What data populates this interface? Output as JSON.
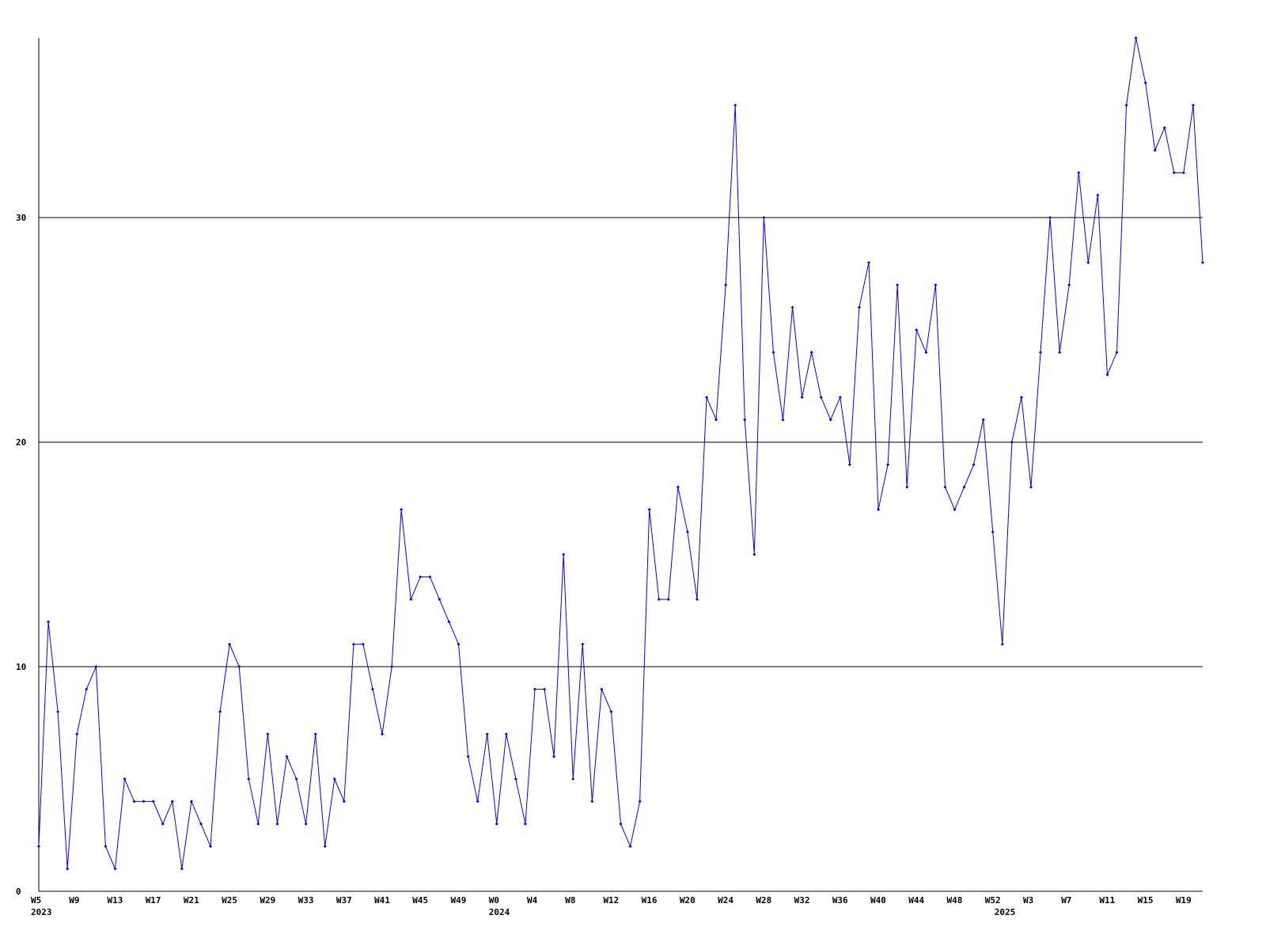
{
  "chart_data": {
    "type": "line",
    "categories": [
      "W5",
      null,
      null,
      null,
      "W9",
      null,
      null,
      null,
      "W13",
      null,
      null,
      null,
      "W17",
      null,
      null,
      null,
      "W21",
      null,
      null,
      null,
      "W25",
      null,
      null,
      null,
      "W29",
      null,
      null,
      null,
      "W33",
      null,
      null,
      null,
      "W37",
      null,
      null,
      null,
      "W41",
      null,
      null,
      null,
      "W45",
      null,
      null,
      null,
      "W49",
      null,
      null,
      null,
      "W0",
      null,
      null,
      null,
      "W4",
      null,
      null,
      null,
      "W8",
      null,
      null,
      null,
      "W12",
      null,
      null,
      null,
      "W16",
      null,
      null,
      null,
      "W20",
      null,
      null,
      null,
      "W24",
      null,
      null,
      null,
      "W28",
      null,
      null,
      null,
      "W32",
      null,
      null,
      null,
      "W36",
      null,
      null,
      null,
      "W40",
      null,
      null,
      null,
      "W44",
      null,
      null,
      null,
      "W48",
      null,
      null,
      null,
      "W52",
      null,
      null,
      null,
      "W3",
      null,
      null,
      null,
      "W7",
      null,
      null,
      null,
      "W11",
      null,
      null,
      null,
      "W15",
      null,
      null,
      null,
      "W19",
      null,
      null
    ],
    "years": [
      {
        "label": "2023",
        "at": 0
      },
      {
        "label": "2024",
        "at": 48
      },
      {
        "label": "2025",
        "at": 101
      }
    ],
    "series": [
      {
        "color": "#0000ff",
        "values": [
          2,
          12,
          8,
          1,
          7,
          9,
          10,
          2,
          1,
          5,
          4,
          4,
          4,
          3,
          4,
          1,
          4,
          3,
          2,
          8,
          11,
          10,
          5,
          3,
          7,
          3,
          6,
          5,
          3,
          7,
          2,
          5,
          4,
          11,
          11,
          9,
          7,
          10,
          17,
          13,
          14,
          14,
          13,
          12,
          11,
          6,
          4,
          7,
          3,
          7,
          5,
          3,
          9,
          9,
          6,
          15,
          5,
          11,
          4,
          9,
          8,
          3,
          2,
          4,
          17,
          13,
          13,
          18,
          16,
          13,
          22,
          21,
          27,
          35,
          21,
          15,
          30,
          24,
          21,
          26,
          22,
          24,
          22,
          21,
          22,
          19,
          26,
          28,
          17,
          19,
          27,
          18,
          25,
          24,
          27,
          18,
          17,
          18,
          19,
          21,
          16,
          11,
          20,
          22,
          18,
          24,
          30,
          24,
          27,
          32,
          28,
          31,
          23,
          24,
          35,
          38,
          36,
          33,
          34,
          32,
          32,
          35,
          28
        ]
      }
    ],
    "ylim": [
      0,
      38
    ],
    "yticks": [
      0,
      10,
      20,
      30
    ],
    "grid": true
  }
}
